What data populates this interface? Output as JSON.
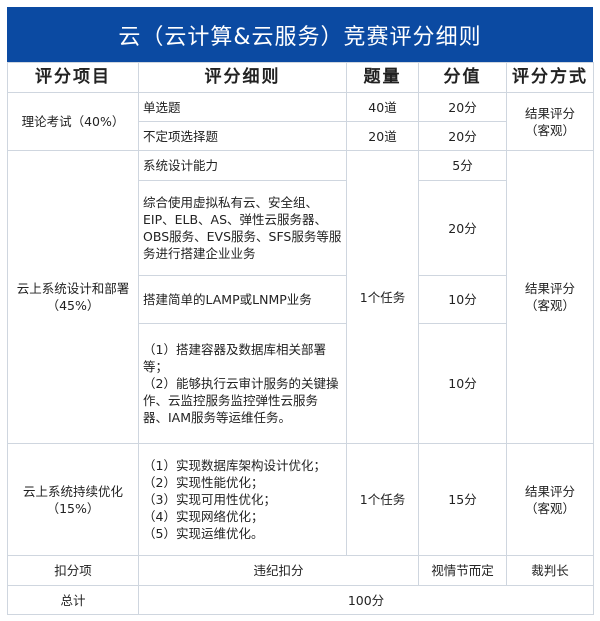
{
  "title": "云（云计算&云服务）竞赛评分细则",
  "headers": [
    "评分项目",
    "评分细则",
    "题量",
    "分值",
    "评分方式"
  ],
  "theory": {
    "item": "理论考试（40%）",
    "method": "结果评分\n（客观）",
    "rows": [
      {
        "detail": "单选题",
        "qty": "40道",
        "score": "20分"
      },
      {
        "detail": "不定项选择题",
        "qty": "20道",
        "score": "20分"
      }
    ]
  },
  "design": {
    "item": "云上系统设计和部署（45%）",
    "qty": "1个任务",
    "method": "结果评分\n（客观）",
    "rows": [
      {
        "detail": "系统设计能力",
        "score": "5分"
      },
      {
        "detail": "综合使用虚拟私有云、安全组、EIP、ELB、AS、弹性云服务器、OBS服务、EVS服务、SFS服务等服务进行搭建企业业务",
        "score": "20分"
      },
      {
        "detail": "搭建简单的LAMP或LNMP业务",
        "score": "10分"
      },
      {
        "detail": "（1）搭建容器及数据库相关部署等；\n（2）能够执行云审计服务的关键操作、云监控服务监控弹性云服务器、IAM服务等运维任务。",
        "score": "10分"
      }
    ]
  },
  "optimize": {
    "item": "云上系统持续优化\n（15%）",
    "detail": "（1）实现数据库架构设计优化；\n（2）实现性能优化；\n（3）实现可用性优化；\n（4）实现网络优化；\n（5）实现运维优化。",
    "qty": "1个任务",
    "score": "15分",
    "method": "结果评分\n（客观）"
  },
  "deduction": {
    "item": "扣分项",
    "detail": "违纪扣分",
    "score": "视情节而定",
    "method": "裁判长"
  },
  "total": {
    "item": "总计",
    "value": "100分"
  }
}
